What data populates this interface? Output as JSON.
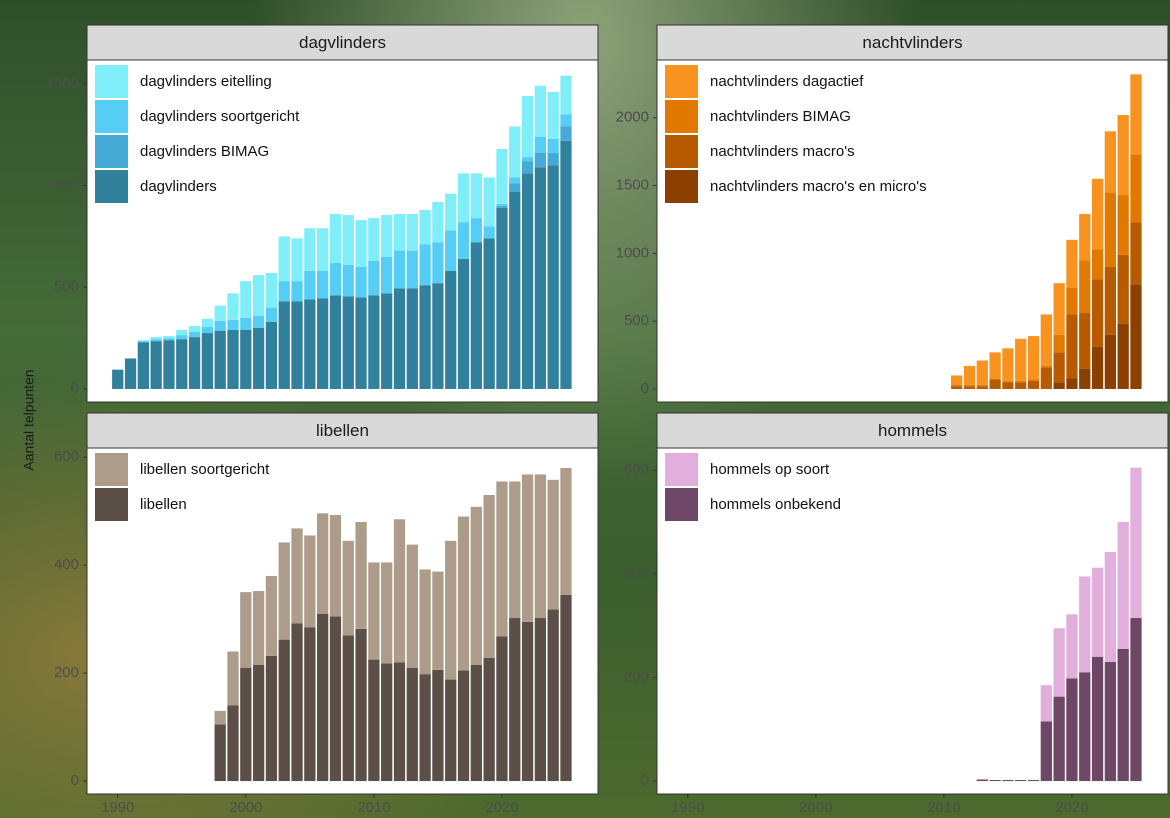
{
  "y_label": "Aantal telpunten",
  "chart_data": [
    {
      "type": "bar",
      "title": "dagvlinders",
      "x": [
        1990,
        1991,
        1992,
        1993,
        1994,
        1995,
        1996,
        1997,
        1998,
        1999,
        2000,
        2001,
        2002,
        2003,
        2004,
        2005,
        2006,
        2007,
        2008,
        2009,
        2010,
        2011,
        2012,
        2013,
        2014,
        2015,
        2016,
        2017,
        2018,
        2019,
        2020,
        2021,
        2022,
        2023,
        2024,
        2025
      ],
      "xlim": [
        1987.6,
        2027.5
      ],
      "ylim": [
        -64,
        1617
      ],
      "yticks": [
        0,
        500,
        1000,
        1500
      ],
      "series": [
        {
          "name": "dagvlinders",
          "color": "#31809c",
          "values": [
            95,
            150,
            230,
            235,
            240,
            245,
            255,
            275,
            285,
            290,
            290,
            300,
            330,
            430,
            430,
            440,
            445,
            460,
            455,
            450,
            460,
            470,
            495,
            495,
            510,
            520,
            580,
            640,
            720,
            740,
            890,
            970,
            1060,
            1090,
            1100,
            1220
          ]
        },
        {
          "name": "dagvlinders BIMAG",
          "color": "#45aad5",
          "values": [
            0,
            0,
            0,
            0,
            0,
            0,
            0,
            0,
            0,
            0,
            0,
            0,
            0,
            0,
            0,
            0,
            0,
            0,
            0,
            0,
            0,
            0,
            0,
            0,
            0,
            0,
            0,
            0,
            0,
            0,
            10,
            40,
            60,
            70,
            60,
            70
          ]
        },
        {
          "name": "dagvlinders soortgericht",
          "color": "#55cdf5",
          "values": [
            0,
            0,
            5,
            10,
            10,
            20,
            25,
            30,
            50,
            50,
            60,
            60,
            70,
            100,
            100,
            140,
            135,
            160,
            155,
            150,
            170,
            180,
            185,
            185,
            200,
            200,
            200,
            180,
            120,
            60,
            10,
            30,
            20,
            80,
            70,
            60
          ]
        },
        {
          "name": "dagvlinders eitelling",
          "color": "#80eef8",
          "values": [
            0,
            0,
            5,
            10,
            10,
            25,
            30,
            40,
            75,
            130,
            180,
            200,
            170,
            220,
            210,
            210,
            210,
            240,
            245,
            230,
            210,
            205,
            180,
            180,
            170,
            200,
            180,
            240,
            220,
            240,
            270,
            250,
            300,
            250,
            230,
            190
          ]
        }
      ]
    },
    {
      "type": "bar",
      "title": "nachtvlinders",
      "x": [
        1990,
        1991,
        1992,
        1993,
        1994,
        1995,
        1996,
        1997,
        1998,
        1999,
        2000,
        2001,
        2002,
        2003,
        2004,
        2005,
        2006,
        2007,
        2008,
        2009,
        2010,
        2011,
        2012,
        2013,
        2014,
        2015,
        2016,
        2017,
        2018,
        2019,
        2020,
        2021,
        2022,
        2023,
        2024,
        2025
      ],
      "xlim": [
        1987.6,
        2027.5
      ],
      "ylim": [
        -96,
        2426
      ],
      "yticks": [
        0,
        500,
        1000,
        1500,
        2000
      ],
      "series": [
        {
          "name": "nachtvlinders macro's en micro's",
          "color": "#8b4000",
          "values": [
            0,
            0,
            0,
            0,
            0,
            0,
            0,
            0,
            0,
            0,
            0,
            0,
            0,
            0,
            0,
            0,
            0,
            0,
            0,
            0,
            0,
            0,
            0,
            0,
            0,
            0,
            0,
            0,
            0,
            50,
            80,
            150,
            310,
            400,
            480,
            770
          ]
        },
        {
          "name": "nachtvlinders macro's",
          "color": "#b85a00",
          "values": [
            0,
            0,
            0,
            0,
            0,
            0,
            0,
            0,
            0,
            0,
            0,
            0,
            0,
            0,
            0,
            0,
            0,
            0,
            0,
            0,
            0,
            20,
            20,
            20,
            70,
            50,
            50,
            60,
            160,
            220,
            470,
            410,
            500,
            500,
            510,
            460
          ]
        },
        {
          "name": "nachtvlinders BIMAG",
          "color": "#e17800",
          "values": [
            0,
            0,
            0,
            0,
            0,
            0,
            0,
            0,
            0,
            0,
            0,
            0,
            0,
            0,
            0,
            0,
            0,
            0,
            0,
            0,
            0,
            10,
            10,
            10,
            0,
            10,
            10,
            10,
            10,
            130,
            200,
            390,
            220,
            550,
            440,
            500
          ]
        },
        {
          "name": "nachtvlinders dagactief",
          "color": "#f7931e",
          "values": [
            0,
            0,
            0,
            0,
            0,
            0,
            0,
            0,
            0,
            0,
            0,
            0,
            0,
            0,
            0,
            0,
            0,
            0,
            0,
            0,
            0,
            70,
            140,
            180,
            200,
            240,
            310,
            320,
            380,
            380,
            350,
            340,
            520,
            450,
            590,
            590
          ]
        }
      ]
    },
    {
      "type": "bar",
      "title": "libellen",
      "x": [
        1998,
        1999,
        2000,
        2001,
        2002,
        2003,
        2004,
        2005,
        2006,
        2007,
        2008,
        2009,
        2010,
        2011,
        2012,
        2013,
        2014,
        2015,
        2016,
        2017,
        2018,
        2019,
        2020,
        2021,
        2022,
        2023,
        2024,
        2025
      ],
      "xlim": [
        1987.6,
        2027.5
      ],
      "xticks": [
        1990,
        2000,
        2010,
        2020
      ],
      "ylim": [
        -24,
        617
      ],
      "yticks": [
        0,
        200,
        400,
        600
      ],
      "series": [
        {
          "name": "libellen",
          "color": "#5b4f47",
          "values": [
            105,
            140,
            210,
            215,
            232,
            262,
            292,
            285,
            310,
            305,
            270,
            282,
            225,
            218,
            220,
            210,
            198,
            206,
            188,
            205,
            215,
            228,
            268,
            302,
            295,
            302,
            318,
            345
          ]
        },
        {
          "name": "libellen soortgericht",
          "color": "#ae9c8a",
          "values": [
            25,
            100,
            140,
            137,
            148,
            180,
            176,
            170,
            186,
            188,
            175,
            198,
            180,
            187,
            265,
            228,
            194,
            182,
            257,
            285,
            293,
            302,
            287,
            253,
            273,
            266,
            240,
            235
          ]
        }
      ]
    },
    {
      "type": "bar",
      "title": "hommels",
      "x": [
        2013,
        2014,
        2015,
        2016,
        2017,
        2018,
        2019,
        2020,
        2021,
        2022,
        2023,
        2024,
        2025
      ],
      "xlim": [
        1987.6,
        2027.5
      ],
      "xticks": [
        1990,
        2000,
        2010,
        2020
      ],
      "ylim": [
        -25,
        643
      ],
      "yticks": [
        0,
        200,
        400,
        600
      ],
      "series": [
        {
          "name": "hommels onbekend",
          "color": "#6e4766",
          "values": [
            3,
            2,
            2,
            2,
            2,
            115,
            163,
            198,
            210,
            240,
            230,
            255,
            315
          ]
        },
        {
          "name": "hommels op soort",
          "color": "#e2aedb",
          "values": [
            0,
            0,
            0,
            0,
            0,
            70,
            132,
            124,
            185,
            172,
            212,
            245,
            290
          ]
        }
      ]
    }
  ]
}
